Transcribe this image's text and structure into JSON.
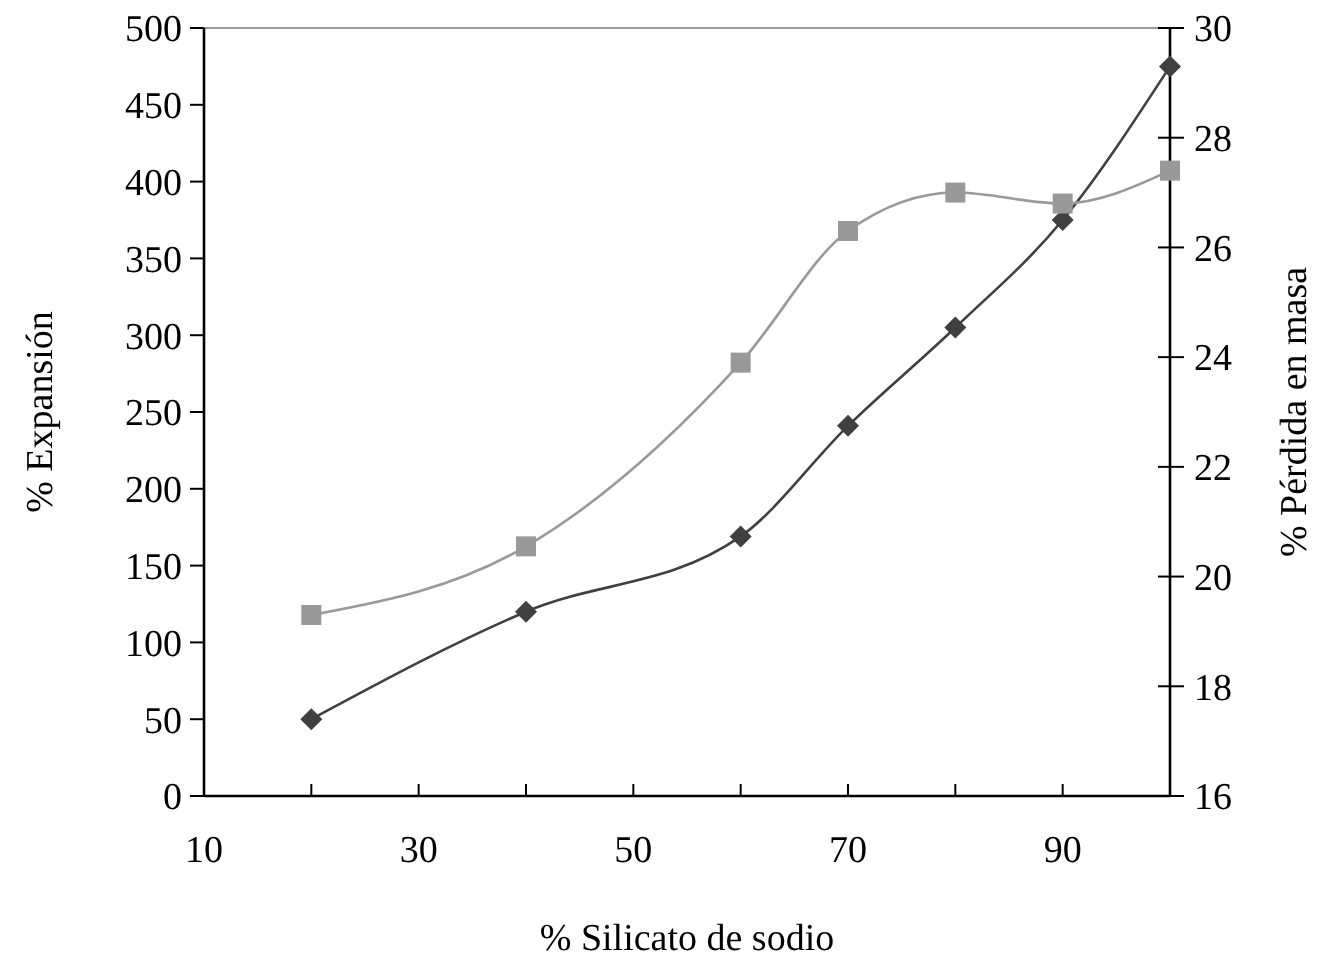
{
  "chart_data": {
    "type": "line",
    "xlabel": "% Silicato de sodio",
    "ylabel": "% Expansión",
    "y2label": "% Pérdida en masa",
    "x": [
      20,
      40,
      60,
      70,
      80,
      90,
      100
    ],
    "xlim": [
      10,
      100
    ],
    "xticks": [
      10,
      {
        "value": 20,
        "label": null
      },
      30,
      {
        "value": 40,
        "label": null
      },
      50,
      {
        "value": 60,
        "label": null
      },
      70,
      {
        "value": 80,
        "label": null
      },
      90,
      {
        "value": 100,
        "label": null
      }
    ],
    "ylim": [
      0,
      500
    ],
    "yticks": [
      0,
      50,
      100,
      150,
      200,
      250,
      300,
      350,
      400,
      450,
      500
    ],
    "y2lim": [
      16,
      30
    ],
    "y2ticks": [
      16,
      18,
      20,
      22,
      24,
      26,
      28,
      30
    ],
    "grid": false,
    "line_style": "solid",
    "series": [
      {
        "color": "#404040",
        "marker": "diamond",
        "values": [
          50,
          120,
          169,
          241,
          305,
          375,
          475
        ]
      },
      {
        "color": "#999999",
        "marker": "square",
        "axis": "y2",
        "values": [
          19.3,
          20.55,
          23.9,
          26.3,
          27.0,
          26.8,
          27.4
        ]
      }
    ]
  }
}
